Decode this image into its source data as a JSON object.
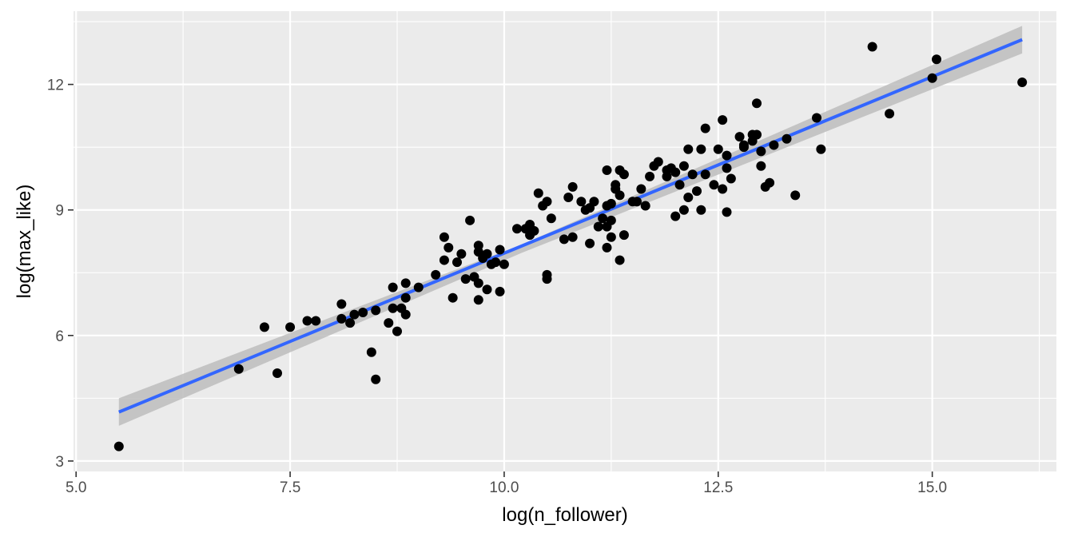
{
  "chart_data": {
    "type": "scatter",
    "title": "",
    "xlabel": "log(n_follower)",
    "ylabel": "log(max_like)",
    "xlim": [
      4.97,
      16.45
    ],
    "ylim": [
      2.75,
      13.75
    ],
    "x_ticks": [
      5.0,
      7.5,
      10.0,
      12.5,
      15.0
    ],
    "x_tick_labels": [
      "5.0",
      "7.5",
      "10.0",
      "12.5",
      "15.0"
    ],
    "y_ticks": [
      3,
      6,
      9,
      12
    ],
    "y_tick_labels": [
      "3",
      "6",
      "9",
      "12"
    ],
    "grid": true,
    "background": "#ebebeb",
    "point_color": "#000000",
    "fit_color": "#3366ff",
    "band_color": "#bdbdbd",
    "series": [
      {
        "kind": "points",
        "points": [
          [
            5.5,
            3.35
          ],
          [
            6.9,
            5.2
          ],
          [
            7.2,
            6.2
          ],
          [
            7.35,
            5.1
          ],
          [
            7.5,
            6.2
          ],
          [
            7.7,
            6.35
          ],
          [
            7.8,
            6.35
          ],
          [
            8.1,
            6.4
          ],
          [
            8.1,
            6.75
          ],
          [
            8.2,
            6.3
          ],
          [
            8.25,
            6.5
          ],
          [
            8.35,
            6.55
          ],
          [
            8.45,
            5.6
          ],
          [
            8.5,
            4.95
          ],
          [
            8.5,
            6.6
          ],
          [
            8.65,
            6.3
          ],
          [
            8.7,
            6.65
          ],
          [
            8.7,
            7.15
          ],
          [
            8.75,
            6.1
          ],
          [
            8.8,
            6.65
          ],
          [
            8.85,
            6.5
          ],
          [
            8.85,
            6.9
          ],
          [
            8.85,
            7.25
          ],
          [
            9.0,
            7.15
          ],
          [
            9.2,
            7.45
          ],
          [
            9.3,
            7.8
          ],
          [
            9.3,
            8.35
          ],
          [
            9.35,
            8.1
          ],
          [
            9.4,
            6.9
          ],
          [
            9.45,
            7.75
          ],
          [
            9.5,
            7.95
          ],
          [
            9.55,
            7.35
          ],
          [
            9.6,
            8.75
          ],
          [
            9.65,
            7.4
          ],
          [
            9.7,
            8.15
          ],
          [
            9.7,
            8.0
          ],
          [
            9.7,
            7.25
          ],
          [
            9.7,
            6.85
          ],
          [
            9.75,
            7.85
          ],
          [
            9.8,
            7.95
          ],
          [
            9.8,
            7.1
          ],
          [
            9.85,
            7.7
          ],
          [
            9.9,
            7.75
          ],
          [
            9.95,
            7.05
          ],
          [
            9.95,
            8.05
          ],
          [
            10.0,
            7.7
          ],
          [
            10.15,
            8.55
          ],
          [
            10.25,
            8.55
          ],
          [
            10.3,
            8.65
          ],
          [
            10.3,
            8.4
          ],
          [
            10.35,
            8.5
          ],
          [
            10.4,
            9.4
          ],
          [
            10.45,
            9.1
          ],
          [
            10.5,
            7.45
          ],
          [
            10.5,
            7.35
          ],
          [
            10.5,
            9.2
          ],
          [
            10.55,
            8.8
          ],
          [
            10.7,
            8.3
          ],
          [
            10.75,
            9.3
          ],
          [
            10.8,
            9.55
          ],
          [
            10.8,
            8.35
          ],
          [
            10.9,
            9.2
          ],
          [
            10.95,
            9.0
          ],
          [
            11.0,
            9.05
          ],
          [
            11.0,
            8.2
          ],
          [
            11.05,
            9.2
          ],
          [
            11.1,
            8.6
          ],
          [
            11.15,
            8.8
          ],
          [
            11.2,
            9.1
          ],
          [
            11.2,
            8.6
          ],
          [
            11.2,
            8.1
          ],
          [
            11.2,
            9.95
          ],
          [
            11.25,
            8.75
          ],
          [
            11.25,
            8.35
          ],
          [
            11.25,
            9.15
          ],
          [
            11.3,
            9.6
          ],
          [
            11.3,
            9.5
          ],
          [
            11.35,
            7.8
          ],
          [
            11.35,
            9.35
          ],
          [
            11.35,
            9.95
          ],
          [
            11.4,
            9.85
          ],
          [
            11.4,
            8.4
          ],
          [
            11.5,
            9.2
          ],
          [
            11.55,
            9.2
          ],
          [
            11.6,
            9.5
          ],
          [
            11.65,
            9.1
          ],
          [
            11.7,
            9.8
          ],
          [
            11.75,
            10.05
          ],
          [
            11.8,
            10.15
          ],
          [
            11.9,
            9.95
          ],
          [
            11.9,
            9.8
          ],
          [
            11.95,
            10.0
          ],
          [
            12.0,
            8.85
          ],
          [
            12.0,
            9.9
          ],
          [
            12.05,
            9.6
          ],
          [
            12.1,
            10.05
          ],
          [
            12.1,
            9.0
          ],
          [
            12.15,
            9.3
          ],
          [
            12.15,
            10.45
          ],
          [
            12.2,
            9.85
          ],
          [
            12.25,
            9.45
          ],
          [
            12.3,
            10.45
          ],
          [
            12.3,
            9.0
          ],
          [
            12.35,
            10.95
          ],
          [
            12.35,
            9.85
          ],
          [
            12.45,
            9.6
          ],
          [
            12.5,
            10.45
          ],
          [
            12.55,
            11.15
          ],
          [
            12.55,
            9.5
          ],
          [
            12.6,
            8.95
          ],
          [
            12.6,
            10.3
          ],
          [
            12.6,
            10.0
          ],
          [
            12.65,
            9.75
          ],
          [
            12.75,
            10.75
          ],
          [
            12.8,
            10.55
          ],
          [
            12.8,
            10.5
          ],
          [
            12.9,
            10.8
          ],
          [
            12.9,
            10.65
          ],
          [
            12.95,
            10.8
          ],
          [
            12.95,
            11.55
          ],
          [
            13.0,
            10.05
          ],
          [
            13.0,
            10.4
          ],
          [
            13.05,
            9.55
          ],
          [
            13.1,
            9.65
          ],
          [
            13.15,
            10.55
          ],
          [
            13.3,
            10.7
          ],
          [
            13.4,
            9.35
          ],
          [
            13.65,
            11.2
          ],
          [
            13.7,
            10.45
          ],
          [
            14.3,
            12.9
          ],
          [
            14.5,
            11.3
          ],
          [
            15.0,
            12.15
          ],
          [
            15.05,
            12.6
          ],
          [
            16.05,
            12.05
          ]
        ]
      },
      {
        "kind": "fit",
        "line": [
          [
            5.5,
            4.17
          ],
          [
            16.05,
            13.07
          ]
        ],
        "band_upper": [
          [
            5.5,
            4.5
          ],
          [
            10.2,
            8.17
          ],
          [
            16.05,
            13.4
          ]
        ],
        "band_lower": [
          [
            5.5,
            3.84
          ],
          [
            10.2,
            7.97
          ],
          [
            16.05,
            12.74
          ]
        ]
      }
    ]
  }
}
